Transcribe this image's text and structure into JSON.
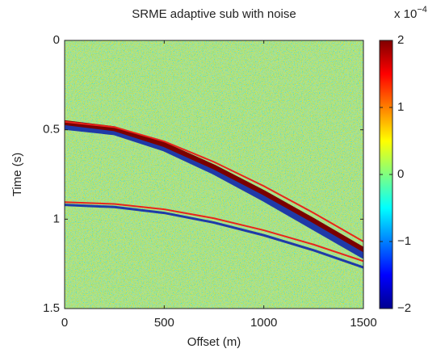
{
  "chart_data": {
    "type": "image",
    "title": "SRME adaptive sub with noise",
    "x_label": "Offset (m)",
    "y_label": "Time (s)",
    "xlim": [
      0,
      1500
    ],
    "xticks": [
      0,
      500,
      1000,
      1500
    ],
    "ylim": [
      0,
      1.5
    ],
    "yticks": [
      0,
      0.5,
      1,
      1.5
    ],
    "y_reversed": true,
    "colormap": "jet",
    "clim": [
      -2,
      2
    ],
    "cticks": [
      {
        "value": -2,
        "label": "−2"
      },
      {
        "value": -1,
        "label": "−1"
      },
      0,
      1,
      2
    ],
    "colorbar_multiplier": "x 10",
    "colorbar_exponent": "−4",
    "series": [
      {
        "color": "#1f3aa8",
        "x": [
          0,
          250,
          500,
          750,
          1000,
          1250,
          1500
        ],
        "values": [
          0.48,
          0.51,
          0.6,
          0.73,
          0.88,
          1.04,
          1.2
        ]
      },
      {
        "color": "#7a0000",
        "x": [
          0,
          250,
          500,
          750,
          1000,
          1250,
          1500
        ],
        "values": [
          0.46,
          0.494,
          0.583,
          0.708,
          0.852,
          1.008,
          1.17
        ]
      },
      {
        "color": "#e8241c",
        "x": [
          0,
          250,
          500,
          750,
          1000,
          1250,
          1500
        ],
        "values": [
          0.455,
          0.485,
          0.565,
          0.68,
          0.815,
          0.965,
          1.125
        ]
      },
      {
        "color": "#1f3aa8",
        "x": [
          0,
          250,
          500,
          750,
          1000,
          1250,
          1500
        ],
        "values": [
          0.92,
          0.932,
          0.965,
          1.019,
          1.09,
          1.174,
          1.27
        ]
      },
      {
        "color": "#e8241c",
        "x": [
          0,
          250,
          500,
          750,
          1000,
          1250,
          1500
        ],
        "values": [
          0.905,
          0.915,
          0.945,
          0.995,
          1.062,
          1.142,
          1.235
        ]
      }
    ]
  }
}
